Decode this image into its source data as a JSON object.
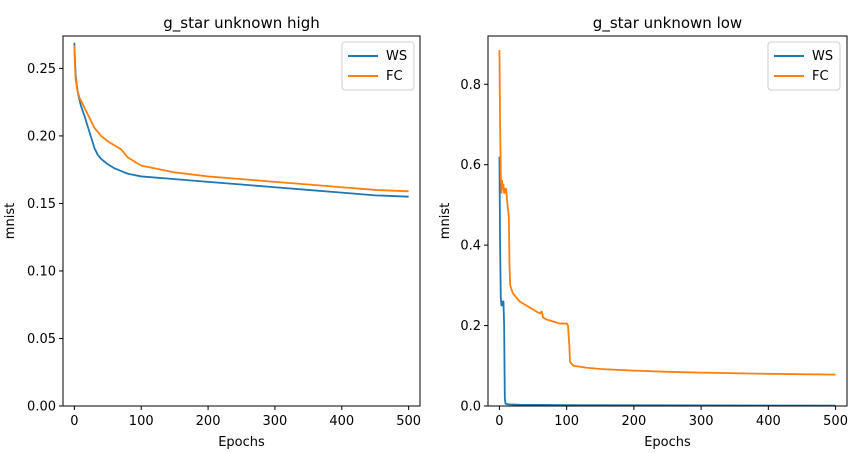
{
  "chart_data": [
    {
      "type": "line",
      "title": "g_star unknown high",
      "xlabel": "Epochs",
      "ylabel": "mnist",
      "xlim": [
        -17,
        517
      ],
      "ylim": [
        0,
        0.274
      ],
      "xticks": [
        0,
        100,
        200,
        300,
        400,
        500
      ],
      "yticks": [
        0.0,
        0.05,
        0.1,
        0.15,
        0.2,
        0.25
      ],
      "ytick_labels": [
        "0.00",
        "0.05",
        "0.10",
        "0.15",
        "0.20",
        "0.25"
      ],
      "xtick_labels": [
        "0",
        "100",
        "200",
        "300",
        "400",
        "500"
      ],
      "legend": "top-right",
      "grid": false,
      "series": [
        {
          "name": "WS",
          "color": "#1f77b4",
          "x": [
            0,
            1,
            2,
            4,
            6,
            8,
            10,
            15,
            20,
            25,
            30,
            35,
            40,
            50,
            60,
            70,
            80,
            100,
            150,
            200,
            250,
            300,
            350,
            400,
            450,
            500
          ],
          "y": [
            0.269,
            0.255,
            0.245,
            0.236,
            0.23,
            0.226,
            0.222,
            0.215,
            0.207,
            0.199,
            0.191,
            0.186,
            0.183,
            0.179,
            0.176,
            0.174,
            0.172,
            0.17,
            0.168,
            0.166,
            0.164,
            0.162,
            0.16,
            0.158,
            0.156,
            0.155
          ]
        },
        {
          "name": "FC",
          "color": "#ff7f0e",
          "x": [
            0,
            1,
            2,
            4,
            6,
            8,
            10,
            15,
            20,
            25,
            30,
            35,
            40,
            50,
            60,
            70,
            80,
            100,
            150,
            200,
            250,
            300,
            350,
            400,
            450,
            500
          ],
          "y": [
            0.267,
            0.25,
            0.242,
            0.235,
            0.231,
            0.228,
            0.226,
            0.221,
            0.216,
            0.211,
            0.206,
            0.203,
            0.2,
            0.196,
            0.193,
            0.19,
            0.184,
            0.178,
            0.173,
            0.17,
            0.168,
            0.166,
            0.164,
            0.162,
            0.16,
            0.159
          ]
        }
      ]
    },
    {
      "type": "line",
      "title": "g_star unknown low",
      "xlabel": "Epochs",
      "ylabel": "mnist",
      "xlim": [
        -17,
        517
      ],
      "ylim": [
        0,
        0.92
      ],
      "xticks": [
        0,
        100,
        200,
        300,
        400,
        500
      ],
      "yticks": [
        0.0,
        0.2,
        0.4,
        0.6,
        0.8
      ],
      "ytick_labels": [
        "0.0",
        "0.2",
        "0.4",
        "0.6",
        "0.8"
      ],
      "xtick_labels": [
        "0",
        "100",
        "200",
        "300",
        "400",
        "500"
      ],
      "legend": "top-right",
      "grid": false,
      "series": [
        {
          "name": "WS",
          "color": "#1f77b4",
          "x": [
            0,
            1,
            2,
            3,
            4,
            5,
            6,
            7,
            8,
            9,
            10,
            15,
            30,
            100,
            500
          ],
          "y": [
            0.62,
            0.4,
            0.27,
            0.25,
            0.26,
            0.25,
            0.26,
            0.2,
            0.02,
            0.006,
            0.005,
            0.004,
            0.003,
            0.002,
            0.001
          ]
        },
        {
          "name": "FC",
          "color": "#ff7f0e",
          "x": [
            0,
            1,
            2,
            3,
            4,
            5,
            6,
            7,
            8,
            9,
            10,
            12,
            14,
            15,
            16,
            20,
            30,
            40,
            50,
            60,
            63,
            65,
            70,
            80,
            90,
            100,
            102,
            104,
            105,
            110,
            130,
            150,
            200,
            250,
            300,
            400,
            500
          ],
          "y": [
            0.885,
            0.7,
            0.58,
            0.53,
            0.56,
            0.54,
            0.55,
            0.53,
            0.54,
            0.53,
            0.54,
            0.5,
            0.47,
            0.35,
            0.3,
            0.28,
            0.26,
            0.25,
            0.24,
            0.23,
            0.235,
            0.22,
            0.215,
            0.21,
            0.205,
            0.205,
            0.2,
            0.15,
            0.11,
            0.1,
            0.095,
            0.092,
            0.088,
            0.085,
            0.083,
            0.08,
            0.078
          ]
        }
      ]
    }
  ]
}
